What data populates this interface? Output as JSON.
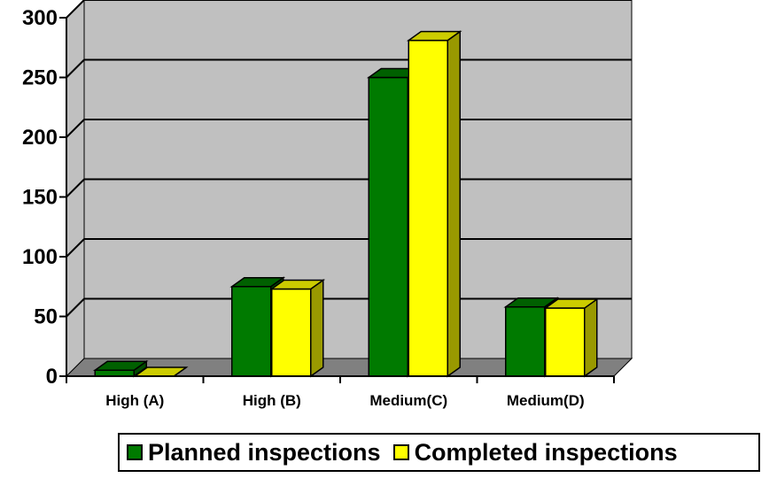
{
  "chart_data": {
    "type": "bar",
    "categories": [
      "High (A)",
      "High (B)",
      "Medium(C)",
      "Medium(D)"
    ],
    "series": [
      {
        "name": "Planned inspections",
        "values": [
          5,
          75,
          250,
          58
        ],
        "color": "#007a00",
        "top_color": "#006000",
        "side_color": "#004a00"
      },
      {
        "name": "Completed inspections",
        "values": [
          0,
          73,
          281,
          57
        ],
        "color": "#ffff00",
        "top_color": "#cccc00",
        "side_color": "#999900"
      }
    ],
    "ylim": [
      0,
      300
    ],
    "yticks": [
      "0",
      "50",
      "100",
      "150",
      "200",
      "250",
      "300"
    ],
    "grid": true,
    "legend_position": "bottom",
    "wall_color": "#c0c0c0",
    "floor_color": "#808080"
  }
}
